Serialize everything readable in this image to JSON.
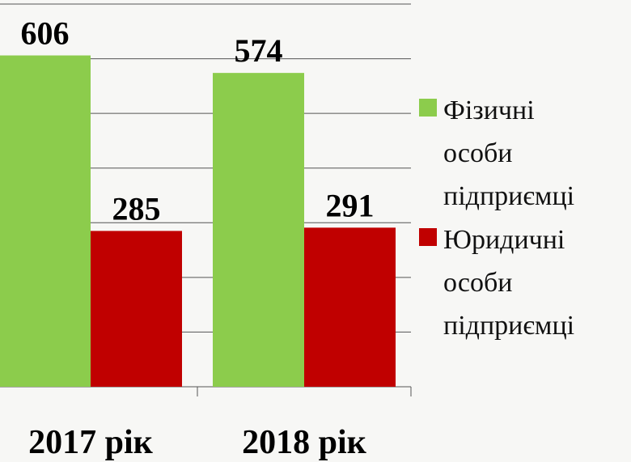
{
  "chart_data": {
    "type": "bar",
    "categories": [
      "2017 рік",
      "2018 рік"
    ],
    "series": [
      {
        "name": "Фізичні особи підприємці",
        "color": "#8ccc4c",
        "values": [
          606,
          574
        ]
      },
      {
        "name": "Юридичні особи підприємці",
        "color": "#c00000",
        "values": [
          285,
          291
        ]
      }
    ],
    "ylim": [
      0,
      700
    ],
    "yticks": [
      0,
      100,
      200,
      300,
      400,
      500,
      600,
      700
    ],
    "grid": true
  }
}
